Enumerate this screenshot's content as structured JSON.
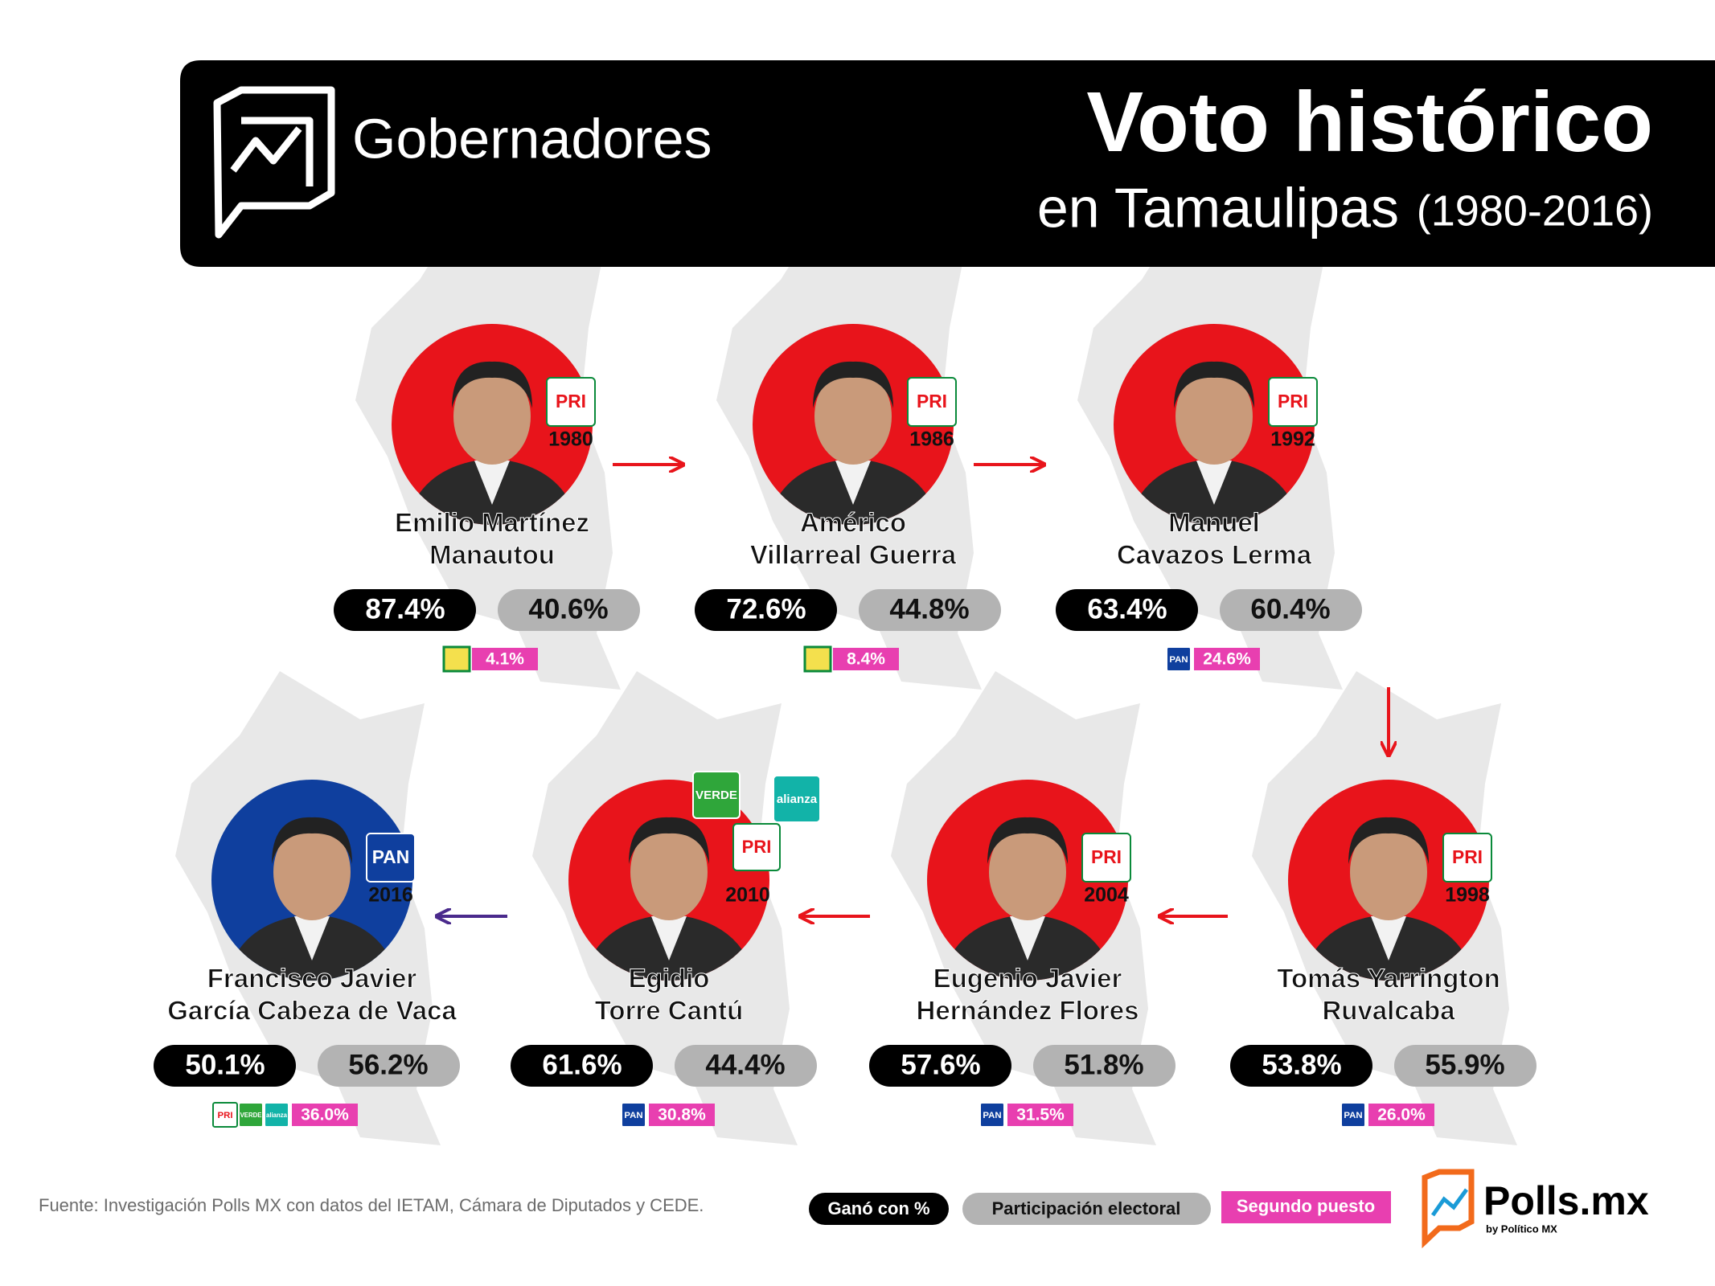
{
  "header": {
    "section": "Gobernadores",
    "title": "Voto histórico",
    "subtitle": "en Tamaulipas",
    "period": "(1980-2016)"
  },
  "governors": [
    {
      "year": "1980",
      "parties": [
        "PRI"
      ],
      "name": [
        "Emilio Martínez",
        "Manautou"
      ],
      "won": "87.4%",
      "turnout": "40.6%",
      "second": "4.1%",
      "circle_color": "#e8141b"
    },
    {
      "year": "1986",
      "parties": [
        "PRI"
      ],
      "name": [
        "Américo",
        "Villarreal Guerra"
      ],
      "won": "72.6%",
      "turnout": "44.8%",
      "second": "8.4%",
      "circle_color": "#e8141b"
    },
    {
      "year": "1992",
      "parties": [
        "PRI"
      ],
      "name": [
        "Manuel",
        "Cavazos Lerma"
      ],
      "won": "63.4%",
      "turnout": "60.4%",
      "second": "24.6%",
      "second_parties": [
        "PAN"
      ],
      "circle_color": "#e8141b"
    },
    {
      "year": "1998",
      "parties": [
        "PRI"
      ],
      "name": [
        "Tomás Yarrington",
        "Ruvalcaba"
      ],
      "won": "53.8%",
      "turnout": "55.9%",
      "second": "26.0%",
      "second_parties": [
        "PAN"
      ],
      "circle_color": "#e8141b"
    },
    {
      "year": "2004",
      "parties": [
        "PRI"
      ],
      "name": [
        "Eugenio Javier",
        "Hernández Flores"
      ],
      "won": "57.6%",
      "turnout": "51.8%",
      "second": "31.5%",
      "second_parties": [
        "PAN"
      ],
      "circle_color": "#e8141b"
    },
    {
      "year": "2010",
      "parties": [
        "VERDE",
        "PRI",
        "alianza"
      ],
      "name": [
        "Egidio",
        "Torre Cantú"
      ],
      "won": "61.6%",
      "turnout": "44.4%",
      "second": "30.8%",
      "second_parties": [
        "PAN"
      ],
      "circle_color": "#e8141b"
    },
    {
      "year": "2016",
      "parties": [
        "PAN"
      ],
      "name": [
        "Francisco Javier",
        "García Cabeza de Vaca"
      ],
      "won": "50.1%",
      "turnout": "56.2%",
      "second": "36.0%",
      "second_parties": [
        "PRI",
        "VERDE",
        "alianza"
      ],
      "circle_color": "#0f3f9e"
    }
  ],
  "footer": {
    "source": "Fuente: Investigación Polls MX con datos del IETAM, Cámara de Diputados y CEDE.",
    "legend": [
      "Ganó con %",
      "Participación electoral",
      "Segundo puesto"
    ],
    "brand": "Polls.mx",
    "brand_sub": "by Político MX"
  }
}
